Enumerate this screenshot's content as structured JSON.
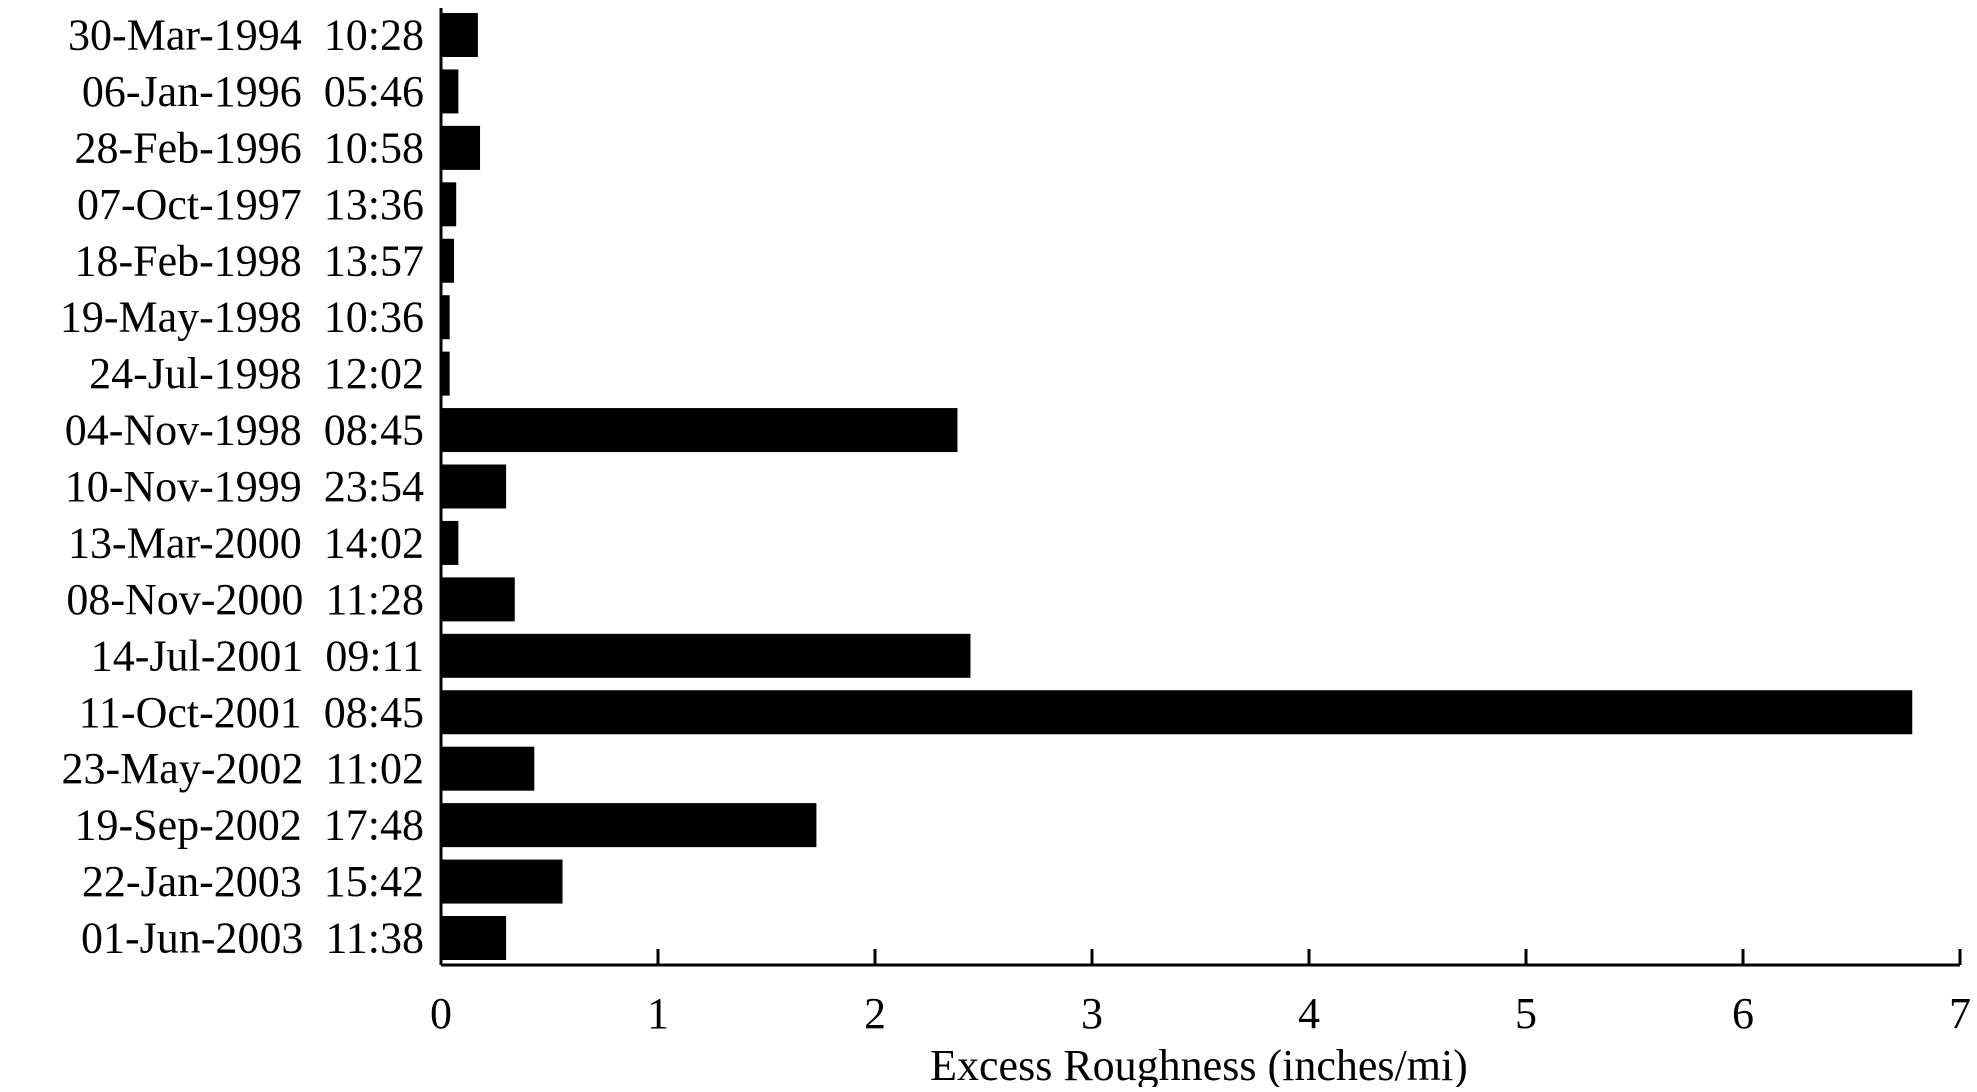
{
  "chart_data": {
    "type": "bar",
    "orientation": "horizontal",
    "title": "",
    "xlabel": "Excess Roughness (inches/mi)",
    "ylabel": "",
    "xlim": [
      0,
      7
    ],
    "xticks": [
      "0",
      "1",
      "2",
      "3",
      "4",
      "5",
      "6",
      "7"
    ],
    "grid": false,
    "legend": "none",
    "bar_color": "#000000",
    "categories": [
      "30-Mar-1994  10:28",
      "06-Jan-1996  05:46",
      "28-Feb-1996  10:58",
      "07-Oct-1997  13:36",
      "18-Feb-1998  13:57",
      "19-May-1998  10:36",
      "24-Jul-1998  12:02",
      "04-Nov-1998  08:45",
      "10-Nov-1999  23:54",
      "13-Mar-2000  14:02",
      "08-Nov-2000  11:28",
      "14-Jul-2001  09:11",
      "11-Oct-2001  08:45",
      "23-May-2002  11:02",
      "19-Sep-2002  17:48",
      "22-Jan-2003  15:42",
      "01-Jun-2003  11:38"
    ],
    "values": [
      0.17,
      0.08,
      0.18,
      0.07,
      0.06,
      0.04,
      0.04,
      2.38,
      0.3,
      0.08,
      0.34,
      2.44,
      6.78,
      0.43,
      1.73,
      0.56,
      0.3
    ]
  }
}
